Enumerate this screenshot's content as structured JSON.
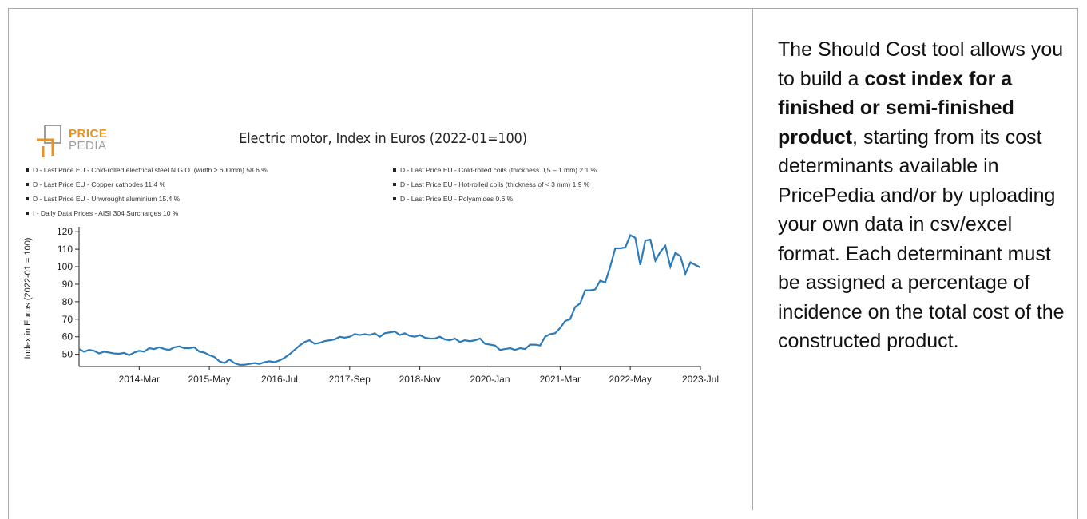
{
  "description": {
    "part1": "The Should Cost tool allows you to build a",
    "bold": "cost index for a finished or semi-finished product",
    "part2": ", starting from its cost determinants available in PricePedia and/or by uploading your own data in csv/excel format. Each determinant must be assigned a percentage of incidence on the total cost of the constructed product."
  },
  "logo": {
    "price": "PRICE",
    "pedia": "PEDIA",
    "accent": "#e8931f"
  },
  "chart_data": {
    "type": "line",
    "title": "Electric motor, Index in Euros (2022-01=100)",
    "ylabel": "Index in Euros (2022-01 = 100)",
    "xlabel": "",
    "ylim": [
      43,
      121
    ],
    "yticks": [
      50,
      60,
      70,
      80,
      90,
      100,
      110,
      120
    ],
    "xticks": [
      "2014-Mar",
      "2015-May",
      "2016-Jul",
      "2017-Sep",
      "2018-Nov",
      "2020-Jan",
      "2021-Mar",
      "2022-May",
      "2023-Jul"
    ],
    "legend": [
      "D - Last Price EU - Cold-rolled electrical steel N.G.O. (width ≥ 600mm) 58.6 %",
      "D - Last Price EU - Cold-rolled coils (thickness 0,5 – 1 mm) 2.1 %",
      "D - Last Price EU - Copper cathodes 11.4 %",
      "D - Last Price EU - Hot-rolled coils (thickness of < 3 mm) 1.9 %",
      "D - Last Price EU - Unwrought aluminium 15.4 %",
      "D - Last Price EU - Polyamides 0.6 %",
      "I - Daily Data Prices - AISI 304 Surcharges 10 %"
    ],
    "color": "#2b7bba",
    "series": [
      {
        "name": "Electric motor",
        "start": "2013-03",
        "values": [
          53,
          51.5,
          52.5,
          52,
          50.5,
          51.5,
          51,
          50.5,
          50.3,
          50.8,
          49.5,
          51,
          52,
          51.5,
          53.5,
          53,
          54,
          53,
          52.5,
          54,
          54.5,
          53.5,
          53.5,
          54,
          51.5,
          51,
          49.5,
          48.5,
          46,
          45,
          47,
          45,
          44,
          44,
          44.5,
          45,
          44.5,
          45.5,
          46,
          45.5,
          46.5,
          48,
          50,
          52.5,
          55,
          57,
          58,
          56,
          56.5,
          57.5,
          58,
          58.5,
          60,
          59.5,
          60,
          61.5,
          61,
          61.5,
          61,
          62,
          60,
          62,
          62.5,
          63,
          61,
          62,
          60.5,
          60,
          61,
          59.5,
          59,
          59,
          60,
          58.5,
          58,
          59,
          57,
          58,
          57.5,
          58,
          59,
          56,
          55.5,
          55,
          52.5,
          53,
          53.5,
          52.5,
          53.5,
          53,
          55.5,
          55.5,
          55,
          60,
          61.5,
          62,
          65,
          69,
          70,
          77,
          79,
          86.5,
          86.5,
          87,
          92,
          91,
          100,
          110.5,
          110.5,
          111,
          118,
          116.5,
          101,
          115,
          115.5,
          103.5,
          108.5,
          112,
          100,
          108,
          106,
          96,
          102.5,
          101,
          99.5
        ]
      }
    ]
  }
}
